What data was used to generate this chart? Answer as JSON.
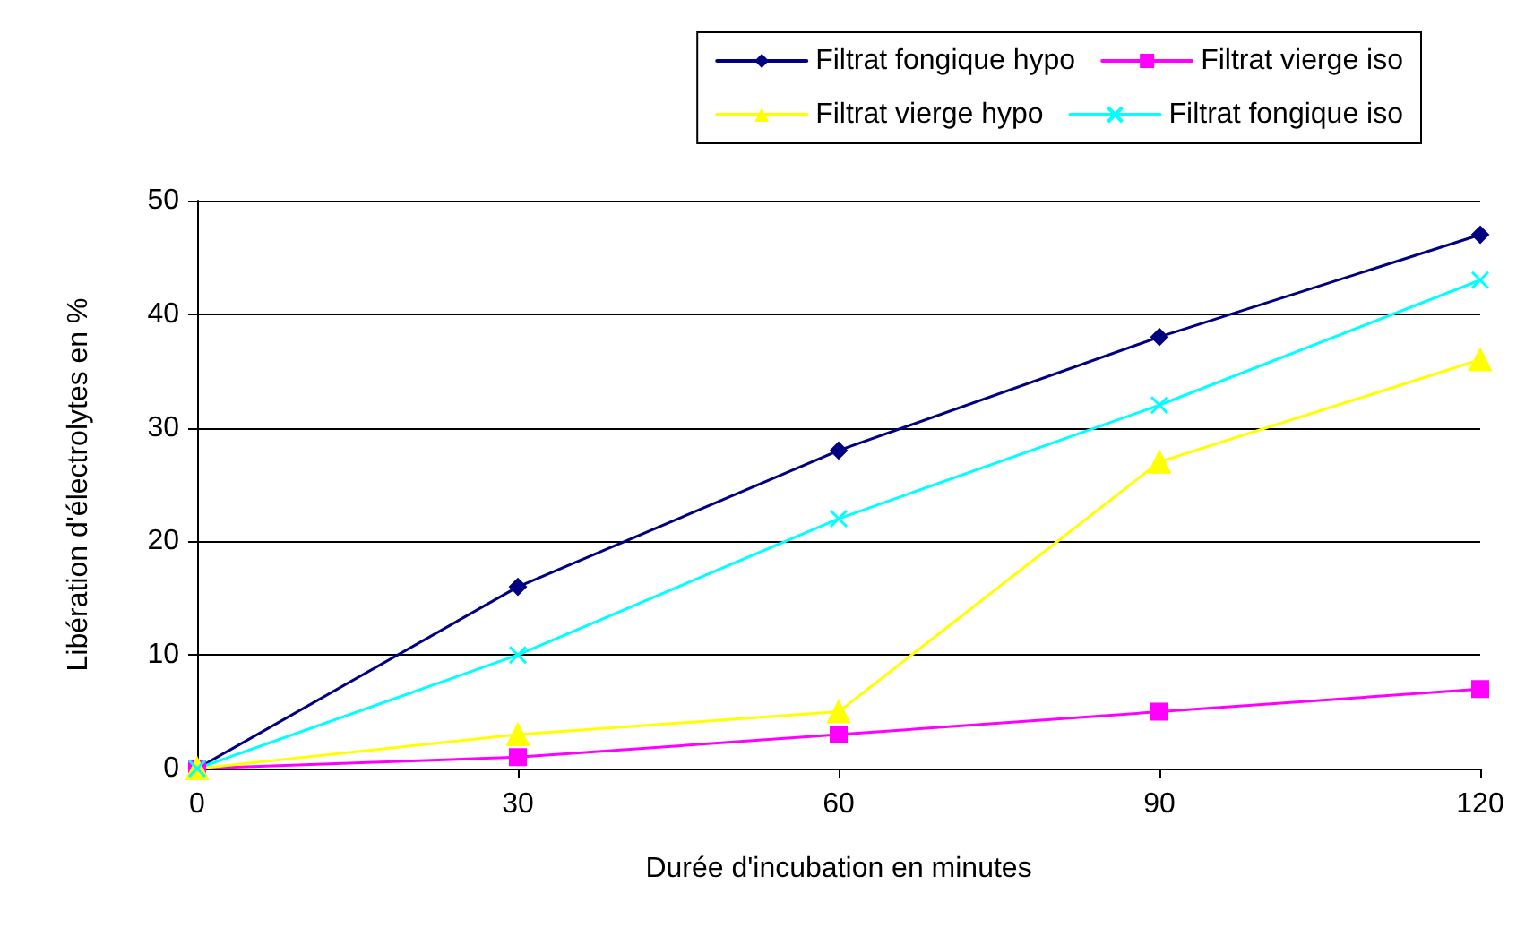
{
  "chart_data": {
    "type": "line",
    "xlabel": "Durée d'incubation en minutes",
    "ylabel": "Libération d'électrolytes en %",
    "x": [
      0,
      30,
      60,
      90,
      120
    ],
    "series": [
      {
        "name": "Filtrat fongique hypo",
        "color": "#000080",
        "marker": "diamond",
        "values": [
          0,
          16,
          28,
          38,
          47
        ]
      },
      {
        "name": "Filtrat vierge iso",
        "color": "#ff00ff",
        "marker": "square",
        "values": [
          0,
          1,
          3,
          5,
          7
        ]
      },
      {
        "name": "Filtrat vierge hypo",
        "color": "#ffff00",
        "marker": "triangle",
        "values": [
          0,
          3,
          5,
          27,
          36
        ]
      },
      {
        "name": "Filtrat fongique iso",
        "color": "#00ffff",
        "marker": "cross",
        "values": [
          0,
          10,
          22,
          32,
          43
        ]
      }
    ],
    "xlim": [
      0,
      120
    ],
    "xticks": [
      0,
      30,
      60,
      90,
      120
    ],
    "ylim": [
      0,
      50
    ],
    "yticks": [
      0,
      10,
      20,
      30,
      40,
      50
    ],
    "grid": "y",
    "legend": "top right",
    "line_style": "solid"
  }
}
